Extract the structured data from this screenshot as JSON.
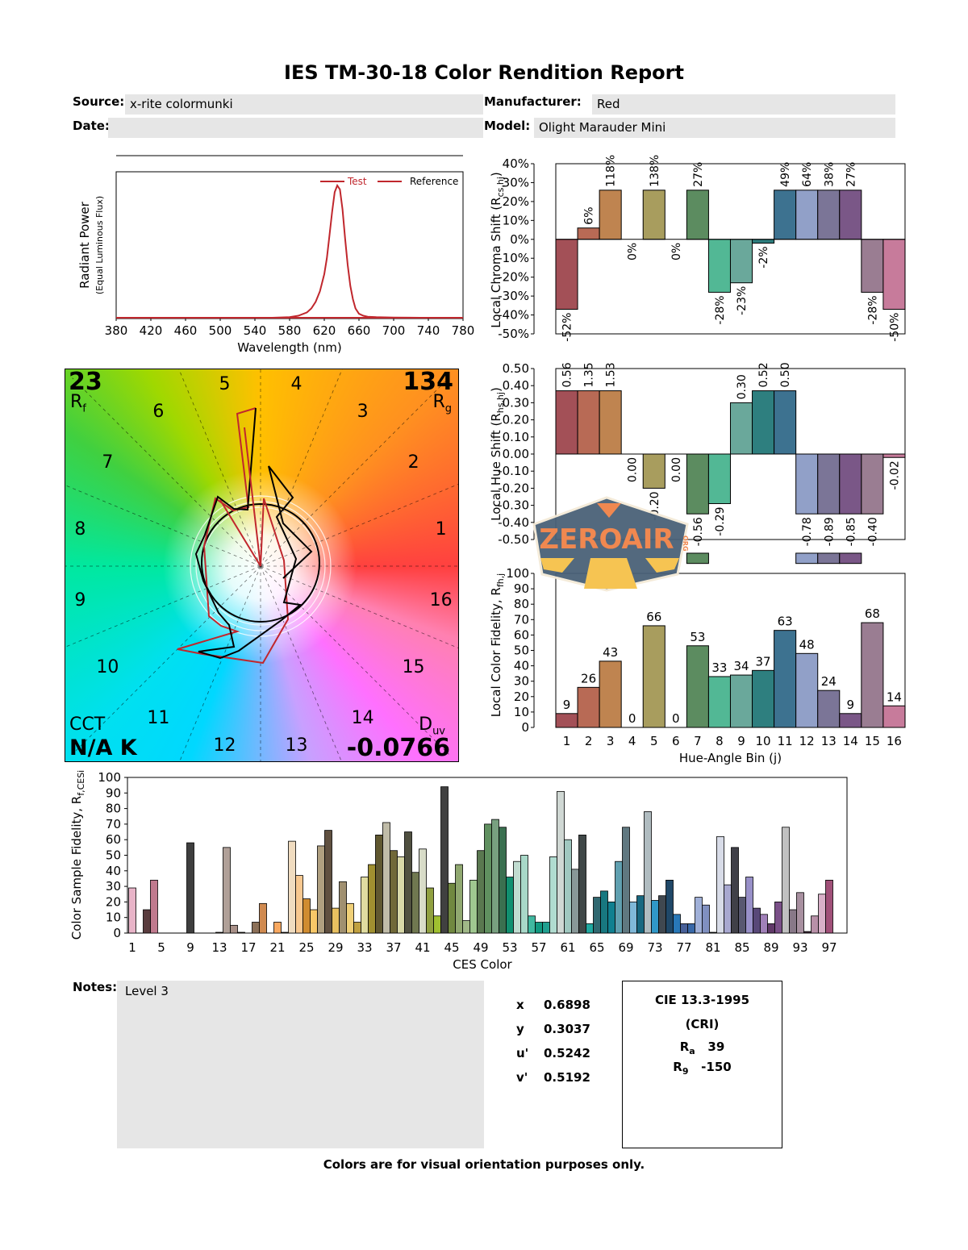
{
  "header": {
    "title": "IES TM-30-18 Color Rendition Report",
    "source_label": "Source:",
    "source_value": "x-rite colormunki",
    "date_label": "Date:",
    "date_value": "",
    "manufacturer_label": "Manufacturer:",
    "manufacturer_value": "Red",
    "model_label": "Model:",
    "model_value": "Olight Marauder Mini"
  },
  "vector_graphic": {
    "rf_value": "23",
    "rf_label": "R",
    "rf_sub": "f",
    "rg_value": "134",
    "rg_label": "R",
    "rg_sub": "g",
    "cct_label": "CCT",
    "cct_value": "N/A K",
    "duv_label": "D",
    "duv_sub": "uv",
    "duv_value": "-0.0766",
    "bin_labels": [
      "1",
      "2",
      "3",
      "4",
      "5",
      "6",
      "7",
      "8",
      "9",
      "10",
      "11",
      "12",
      "13",
      "14",
      "15",
      "16"
    ]
  },
  "watermark": {
    "text": "ZEROAIR",
    "suffix": "ORG"
  },
  "notes": {
    "label": "Notes:",
    "value": "Level 3"
  },
  "chromaticity": [
    {
      "label": "x",
      "value": "0.6898"
    },
    {
      "label": "y",
      "value": "0.3037"
    },
    {
      "label": "u'",
      "value": "0.5242"
    },
    {
      "label": "v'",
      "value": "0.5192"
    }
  ],
  "cri": {
    "title": "CIE 13.3-1995",
    "subtitle": "(CRI)",
    "ra_label": "R",
    "ra_sub": "a",
    "ra_value": "39",
    "r9_label": "R",
    "r9_sub": "9",
    "r9_value": "-150"
  },
  "footer": "Colors are for visual orientation purposes only.",
  "bin_colors": [
    "#a35057",
    "#b86a55",
    "#bf8450",
    "#b8a055",
    "#a89d5e",
    "#8a9a5a",
    "#5c8c60",
    "#52b895",
    "#6aa89b",
    "#2e7f7f",
    "#3d7290",
    "#91a0c8",
    "#7b7597",
    "#7a5787",
    "#9a7d92",
    "#c77b9b"
  ],
  "chart_data": [
    {
      "id": "spectrum",
      "type": "line",
      "title": "",
      "xlabel": "Wavelength (nm)",
      "ylabel": "Radiant Power",
      "ylabel2": "(Equal Luminous Flux)",
      "xlim": [
        380,
        780
      ],
      "xticks": [
        380,
        420,
        460,
        500,
        540,
        580,
        620,
        660,
        700,
        740,
        780
      ],
      "legend": [
        {
          "name": "Test",
          "color": "#c0272d"
        },
        {
          "name": "Reference",
          "color": "#c0272d"
        }
      ],
      "legend_position": "top-right",
      "series": [
        {
          "name": "Test",
          "x": [
            380,
            560,
            580,
            590,
            600,
            605,
            610,
            615,
            620,
            623,
            626,
            629,
            632,
            635,
            638,
            641,
            644,
            647,
            650,
            653,
            656,
            660,
            665,
            670,
            680,
            700,
            730,
            780
          ],
          "y": [
            0.0,
            0.0,
            0.005,
            0.015,
            0.04,
            0.07,
            0.12,
            0.2,
            0.33,
            0.45,
            0.62,
            0.8,
            0.95,
            1.0,
            0.97,
            0.82,
            0.6,
            0.4,
            0.24,
            0.14,
            0.07,
            0.03,
            0.015,
            0.008,
            0.004,
            0.002,
            0.0,
            0.0
          ]
        }
      ]
    },
    {
      "id": "local-chroma-shift",
      "type": "bar",
      "ylabel": "Local Chroma Shift (R",
      "ylabel_sub": "cs,hj",
      "ylim": [
        -50,
        40
      ],
      "yticks": [
        "40%",
        "30%",
        "20%",
        "10%",
        "0%",
        "-10%",
        "-20%",
        "-30%",
        "-40%",
        "-50%"
      ],
      "ytick_values": [
        40,
        30,
        20,
        10,
        0,
        -10,
        -20,
        -30,
        -40,
        -50
      ],
      "categories": [
        "1",
        "2",
        "3",
        "4",
        "5",
        "6",
        "7",
        "8",
        "9",
        "10",
        "11",
        "12",
        "13",
        "14",
        "15",
        "16"
      ],
      "values": [
        -52,
        6,
        118,
        0,
        138,
        0,
        27,
        -28,
        -23,
        -2,
        49,
        64,
        38,
        27,
        -28,
        -50
      ],
      "data_labels": [
        "-52%",
        "6%",
        "118%",
        "0%",
        "138%",
        "0%",
        "27%",
        "-28%",
        "-23%",
        "-2%",
        "49%",
        "64%",
        "38%",
        "27%",
        "-28%",
        "-50%"
      ]
    },
    {
      "id": "local-hue-shift",
      "type": "bar",
      "ylabel": "Local Hue Shift (R",
      "ylabel_sub": "hs,hj",
      "ylim": [
        -0.5,
        0.5
      ],
      "yticks": [
        "0.50",
        "0.40",
        "0.30",
        "0.20",
        "0.10",
        "0.00",
        "-0.10",
        "-0.20",
        "-0.30",
        "-0.40",
        "-0.50"
      ],
      "ytick_values": [
        0.5,
        0.4,
        0.3,
        0.2,
        0.1,
        0,
        -0.1,
        -0.2,
        -0.3,
        -0.4,
        -0.5
      ],
      "categories": [
        "1",
        "2",
        "3",
        "4",
        "5",
        "6",
        "7",
        "8",
        "9",
        "10",
        "11",
        "12",
        "13",
        "14",
        "15",
        "16"
      ],
      "values": [
        0.56,
        1.35,
        1.53,
        0.0,
        -0.2,
        0.0,
        -0.56,
        -0.29,
        0.3,
        0.52,
        0.5,
        -0.78,
        -0.89,
        -0.85,
        -0.4,
        -0.02
      ],
      "data_labels": [
        "0.56",
        "1.35",
        "1.53",
        "0.00",
        "-0.20",
        "0.00",
        "-0.56",
        "-0.29",
        "0.30",
        "0.52",
        "0.50",
        "-0.78",
        "-0.89",
        "-0.85",
        "-0.40",
        "-0.02"
      ]
    },
    {
      "id": "local-color-fidelity",
      "type": "bar",
      "ylabel": "Local Color Fidelity, R",
      "ylabel_sub": "fh,j",
      "xlabel": "Hue-Angle Bin (j)",
      "ylim": [
        0,
        100
      ],
      "yticks": [
        0,
        10,
        20,
        30,
        40,
        50,
        60,
        70,
        80,
        90,
        100
      ],
      "categories": [
        "1",
        "2",
        "3",
        "4",
        "5",
        "6",
        "7",
        "8",
        "9",
        "10",
        "11",
        "12",
        "13",
        "14",
        "15",
        "16"
      ],
      "values": [
        9,
        26,
        43,
        0,
        66,
        0,
        53,
        33,
        34,
        37,
        63,
        48,
        24,
        9,
        68,
        14
      ]
    },
    {
      "id": "color-sample-fidelity",
      "type": "bar",
      "ylabel": "Color Sample Fidelity, R",
      "ylabel_sub": "f,CESi",
      "xlabel": "CES Color",
      "ylim": [
        0,
        100
      ],
      "yticks": [
        0,
        10,
        20,
        30,
        40,
        50,
        60,
        70,
        80,
        90,
        100
      ],
      "xticks": [
        1,
        5,
        9,
        13,
        17,
        21,
        25,
        29,
        33,
        37,
        41,
        45,
        49,
        53,
        57,
        61,
        65,
        69,
        73,
        77,
        81,
        85,
        89,
        93,
        97
      ],
      "values": [
        29,
        0,
        15,
        34,
        0,
        0,
        0,
        0,
        58,
        0,
        0,
        0,
        0.5,
        55,
        5,
        0.5,
        0,
        7,
        19,
        0,
        7,
        0.5,
        59,
        37,
        22,
        15,
        56,
        66,
        16,
        33,
        19,
        7,
        36,
        44,
        63,
        71,
        53,
        49,
        65,
        39,
        54,
        29,
        11,
        94,
        32,
        44,
        8,
        34,
        53,
        70,
        73,
        68,
        36,
        46,
        50,
        11,
        7,
        7,
        49,
        91,
        60,
        41,
        63,
        6,
        23,
        27,
        20,
        46,
        68,
        20,
        24,
        78,
        21,
        24,
        34,
        12,
        6,
        6,
        23,
        18,
        0.5,
        62,
        31,
        55,
        23,
        36,
        16,
        12,
        6,
        20,
        68,
        15,
        26,
        1,
        11,
        25,
        34
      ],
      "colors": [
        "#e8b4c8",
        "#c98a98",
        "#5a3c3e",
        "#c07a8e",
        "#b06a6a",
        "#c48080",
        "#9a6060",
        "#704848",
        "#3e3e3e",
        "#a07070",
        "#c09080",
        "#806050",
        "#3a2a20",
        "#b0a098",
        "#a89088",
        "#504030",
        "#7a6450",
        "#8c7058",
        "#d08a50",
        "#c07040",
        "#f8a860",
        "#3a2a18",
        "#f0dcc0",
        "#f8c890",
        "#d08c30",
        "#f8c868",
        "#b0a080",
        "#605040",
        "#e8c060",
        "#a09070",
        "#f0d078",
        "#c0a040",
        "#e0dca0",
        "#a09030",
        "#605830",
        "#c0bca8",
        "#706838",
        "#d8d8a8",
        "#505040",
        "#707850",
        "#d8dcc8",
        "#90a040",
        "#a0c030",
        "#404040",
        "#708840",
        "#90a870",
        "#a0b888",
        "#a0c890",
        "#5a7850",
        "#609060",
        "#78a080",
        "#3a7050",
        "#109070",
        "#c0dcd0",
        "#a8d8c8",
        "#40b8a0",
        "#109880",
        "#20a090",
        "#b0dcd0",
        "#d0d8d4",
        "#a0c8c0",
        "#889898",
        "#404848",
        "#20a8a0",
        "#306870",
        "#187880",
        "#108090",
        "#60a0b0",
        "#607880",
        "#80b8d8",
        "#186880",
        "#b0bcc0",
        "#3098c8",
        "#404850",
        "#204868",
        "#2878b8",
        "#486098",
        "#3868a8",
        "#a0b0d8",
        "#8090c0",
        "#202830",
        "#d8dce8",
        "#a8a8d0",
        "#404048",
        "#585870",
        "#9890c8",
        "#584878",
        "#a080b8",
        "#603868",
        "#7a5088",
        "#c0c0c0",
        "#887888",
        "#a890a0",
        "#402838",
        "#b890a8",
        "#d8b0c8",
        "#a05078"
      ]
    }
  ]
}
